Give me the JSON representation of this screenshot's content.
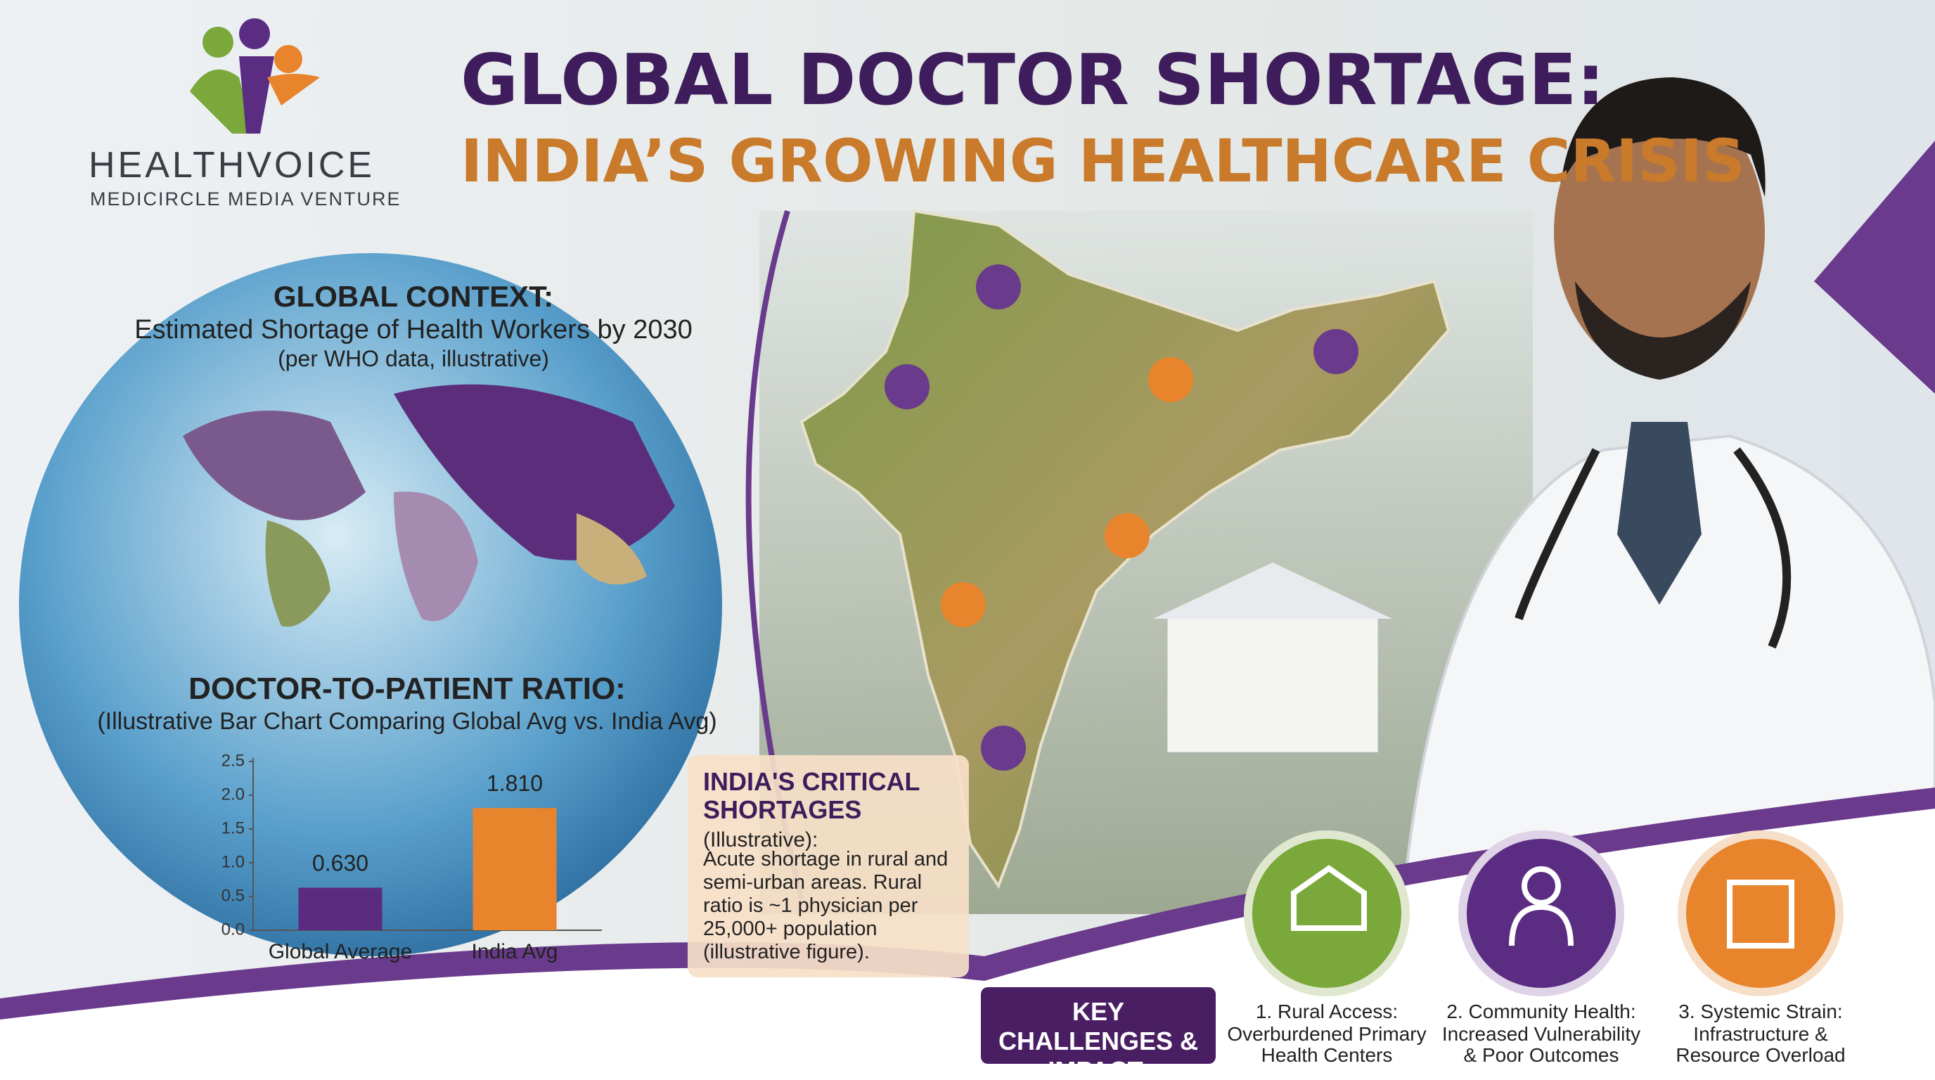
{
  "header": {
    "brand": "HEALTHVOICE",
    "tagline": "MEDICIRCLE MEDIA VENTURE",
    "title": "GLOBAL DOCTOR SHORTAGE:",
    "subtitle": "INDIA’S GROWING HEALTHCARE CRISIS"
  },
  "global_context": {
    "heading": "GLOBAL CONTEXT:",
    "text": "Estimated Shortage of Health Workers by 2030",
    "note": "(per WHO data, illustrative)"
  },
  "chart_data": {
    "type": "bar",
    "title": "DOCTOR-TO-PATIENT RATIO:",
    "subtitle": "(Illustrative Bar Chart Comparing Global Avg vs. India Avg)",
    "categories": [
      "Global Average",
      "India Avg"
    ],
    "values": [
      0.63,
      1.81
    ],
    "value_labels": [
      "0.630",
      "1.810"
    ],
    "colors": [
      "#5a2b7e",
      "#e8842c"
    ],
    "ylim": [
      0,
      2.5
    ],
    "yticks": [
      {
        "value": 0,
        "label": "0.0"
      },
      0.5,
      {
        "value": 1,
        "label": "1.0"
      },
      1.5,
      {
        "value": 2,
        "label": "2.0"
      },
      2.5
    ]
  },
  "shortages": {
    "title": "INDIA'S CRITICAL SHORTAGES",
    "note": "(Illustrative):",
    "text": "Acute shortage in rural and semi-urban areas. Rural ratio is ~1 physician per 25,000+ population (illustrative figure)."
  },
  "challenges": {
    "heading": "KEY CHALLENGES & IMPACT:",
    "items": [
      {
        "title": "1. Rural Access:",
        "text": "Overburdened Primary Health Centers"
      },
      {
        "title": "2. Community Health:",
        "text": "Increased Vulnerability & Poor Outcomes"
      },
      {
        "title": "3. Systemic Strain:",
        "text": "Infrastructure & Resource Overload"
      }
    ]
  }
}
